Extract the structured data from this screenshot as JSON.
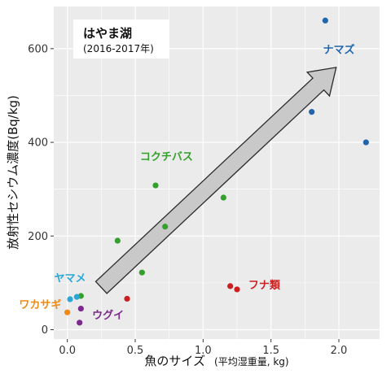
{
  "chart_data": {
    "type": "scatter",
    "title": "",
    "inset": {
      "title": "はやま湖",
      "subtitle": "(2016-2017年)"
    },
    "xlabel_main": "魚のサイズ",
    "xlabel_sub": "(平均湿重量, kg)",
    "ylabel": "放射性セシウム濃度(Bq/kg)",
    "xlim": [
      -0.1,
      2.3
    ],
    "ylim": [
      -20,
      690
    ],
    "xticks": [
      0.0,
      0.5,
      1.0,
      1.5,
      2.0
    ],
    "xtick_labels": [
      "0.0",
      "0.5",
      "1.0",
      "1.5",
      "2.0"
    ],
    "yticks": [
      0,
      200,
      400,
      600
    ],
    "ytick_labels": [
      "0",
      "200",
      "400",
      "600"
    ],
    "grid": true,
    "legend": "none",
    "trend_arrow": {
      "from": [
        0.25,
        90
      ],
      "to": [
        1.98,
        560
      ]
    },
    "series": [
      {
        "name": "ナマズ",
        "color": "#2166ac",
        "label_at": [
          2.0,
          590
        ],
        "points": [
          [
            1.9,
            660
          ],
          [
            1.8,
            465
          ],
          [
            2.2,
            400
          ]
        ]
      },
      {
        "name": "コクチバス",
        "color": "#33a02c",
        "label_at": [
          0.73,
          362
        ],
        "points": [
          [
            0.65,
            308
          ],
          [
            1.15,
            282
          ],
          [
            0.72,
            220
          ],
          [
            0.37,
            190
          ],
          [
            0.55,
            122
          ],
          [
            0.1,
            72
          ]
        ]
      },
      {
        "name": "フナ類",
        "color": "#cc1f1f",
        "label_at": [
          1.45,
          88
        ],
        "points": [
          [
            1.2,
            93
          ],
          [
            1.25,
            86
          ],
          [
            0.44,
            66
          ]
        ]
      },
      {
        "name": "ヤマメ",
        "color": "#2aa7d6",
        "label_at": [
          0.02,
          102
        ],
        "points": [
          [
            0.02,
            65
          ],
          [
            0.07,
            70
          ]
        ]
      },
      {
        "name": "ワカサギ",
        "color": "#ee8a16",
        "label_at": [
          -0.2,
          46
        ],
        "points": [
          [
            0.0,
            37
          ]
        ]
      },
      {
        "name": "ウグイ",
        "color": "#7b2a8c",
        "label_at": [
          0.3,
          23
        ],
        "points": [
          [
            0.1,
            45
          ],
          [
            0.09,
            15
          ]
        ]
      }
    ]
  }
}
